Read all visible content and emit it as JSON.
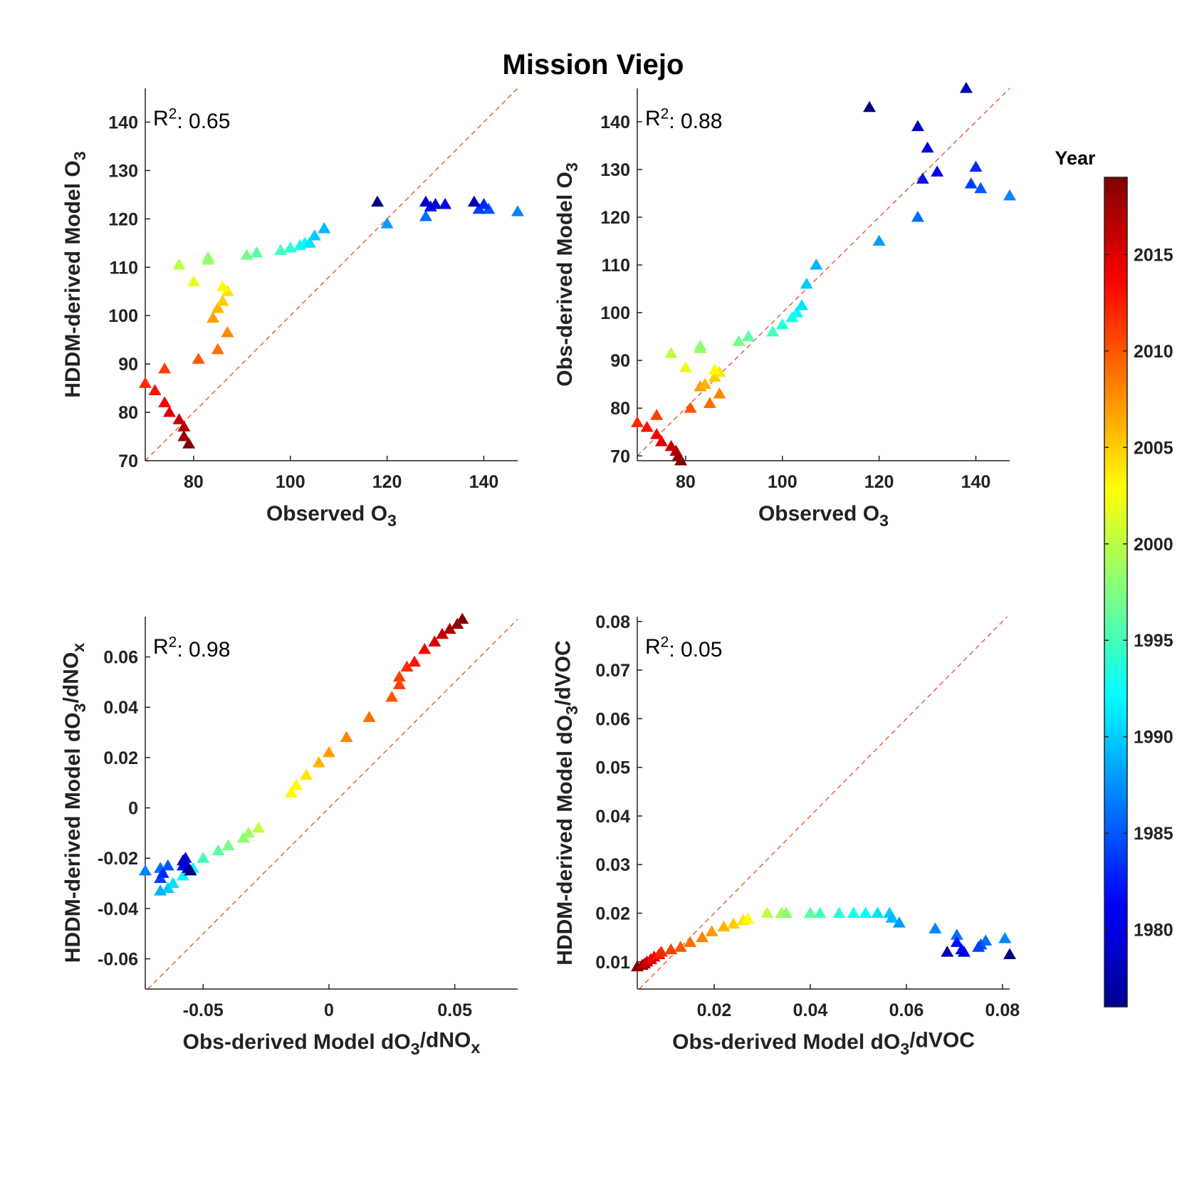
{
  "figure": {
    "title": "Mission Viejo",
    "colorbar": {
      "title": "Year",
      "range": [
        1976,
        2019
      ],
      "ticks": [
        1980,
        1985,
        1990,
        1995,
        2000,
        2005,
        2010,
        2015
      ],
      "colormap": "jet"
    }
  },
  "chart_data": [
    {
      "type": "scatter",
      "marker": "triangle",
      "xlabel": "Observed O3",
      "ylabel": "HDDM-derived Model O3",
      "annotation": "R2: 0.65",
      "xlim": [
        70,
        147
      ],
      "ylim": [
        70,
        147
      ],
      "xticks": [
        80,
        100,
        120,
        140
      ],
      "yticks": [
        70,
        80,
        90,
        100,
        110,
        120,
        130,
        140
      ],
      "identity_line": true,
      "points": [
        {
          "x": 79,
          "y": 73.5,
          "year": 2019
        },
        {
          "x": 78,
          "y": 75,
          "year": 2018
        },
        {
          "x": 78,
          "y": 77,
          "year": 2017
        },
        {
          "x": 77,
          "y": 78.5,
          "year": 2016
        },
        {
          "x": 75,
          "y": 80,
          "year": 2015
        },
        {
          "x": 74,
          "y": 82,
          "year": 2014
        },
        {
          "x": 72,
          "y": 84.5,
          "year": 2013
        },
        {
          "x": 70,
          "y": 86,
          "year": 2012
        },
        {
          "x": 74,
          "y": 89,
          "year": 2011
        },
        {
          "x": 81,
          "y": 91,
          "year": 2010
        },
        {
          "x": 85,
          "y": 93,
          "year": 2009
        },
        {
          "x": 87,
          "y": 96.5,
          "year": 2008
        },
        {
          "x": 84,
          "y": 99.5,
          "year": 2007
        },
        {
          "x": 85,
          "y": 101.5,
          "year": 2006
        },
        {
          "x": 86,
          "y": 103,
          "year": 2005
        },
        {
          "x": 87,
          "y": 105,
          "year": 2004
        },
        {
          "x": 86,
          "y": 106,
          "year": 2003
        },
        {
          "x": 80,
          "y": 107,
          "year": 2002
        },
        {
          "x": 77,
          "y": 110.5,
          "year": 2000
        },
        {
          "x": 83,
          "y": 111.5,
          "year": 1999
        },
        {
          "x": 83,
          "y": 112,
          "year": 1998
        },
        {
          "x": 91,
          "y": 112.5,
          "year": 1997
        },
        {
          "x": 93,
          "y": 113,
          "year": 1996
        },
        {
          "x": 98,
          "y": 113.5,
          "year": 1995
        },
        {
          "x": 100,
          "y": 114,
          "year": 1994
        },
        {
          "x": 102,
          "y": 114.5,
          "year": 1993
        },
        {
          "x": 103,
          "y": 115,
          "year": 1992
        },
        {
          "x": 104,
          "y": 115,
          "year": 1991
        },
        {
          "x": 105,
          "y": 116.5,
          "year": 1990
        },
        {
          "x": 107,
          "y": 118,
          "year": 1989
        },
        {
          "x": 120,
          "y": 119,
          "year": 1988
        },
        {
          "x": 147,
          "y": 121.5,
          "year": 1987
        },
        {
          "x": 128,
          "y": 120.5,
          "year": 1986
        },
        {
          "x": 141,
          "y": 122,
          "year": 1985
        },
        {
          "x": 139,
          "y": 122,
          "year": 1984
        },
        {
          "x": 140,
          "y": 123,
          "year": 1983
        },
        {
          "x": 129,
          "y": 122.5,
          "year": 1982
        },
        {
          "x": 132,
          "y": 123,
          "year": 1981
        },
        {
          "x": 130,
          "y": 123,
          "year": 1980
        },
        {
          "x": 128,
          "y": 123.5,
          "year": 1979
        },
        {
          "x": 138,
          "y": 123.5,
          "year": 1978
        },
        {
          "x": 118,
          "y": 123.5,
          "year": 1976
        }
      ]
    },
    {
      "type": "scatter",
      "marker": "triangle",
      "xlabel": "Observed O3",
      "ylabel": "Obs-derived Model O3",
      "annotation": "R2: 0.88",
      "xlim": [
        70,
        147
      ],
      "ylim": [
        69,
        147
      ],
      "xticks": [
        80,
        100,
        120,
        140
      ],
      "yticks": [
        70,
        80,
        90,
        100,
        110,
        120,
        130,
        140
      ],
      "identity_line": true,
      "points": [
        {
          "x": 79,
          "y": 69,
          "year": 2019
        },
        {
          "x": 78.5,
          "y": 70,
          "year": 2018
        },
        {
          "x": 78,
          "y": 71,
          "year": 2017
        },
        {
          "x": 77,
          "y": 72,
          "year": 2016
        },
        {
          "x": 75,
          "y": 73,
          "year": 2015
        },
        {
          "x": 74,
          "y": 74.5,
          "year": 2014
        },
        {
          "x": 72,
          "y": 76,
          "year": 2013
        },
        {
          "x": 70,
          "y": 77,
          "year": 2012
        },
        {
          "x": 74,
          "y": 78.5,
          "year": 2011
        },
        {
          "x": 81,
          "y": 80,
          "year": 2010
        },
        {
          "x": 85,
          "y": 81,
          "year": 2009
        },
        {
          "x": 87,
          "y": 83,
          "year": 2008
        },
        {
          "x": 83,
          "y": 84.5,
          "year": 2007
        },
        {
          "x": 84,
          "y": 85,
          "year": 2006
        },
        {
          "x": 86,
          "y": 86.5,
          "year": 2005
        },
        {
          "x": 87,
          "y": 87.5,
          "year": 2004
        },
        {
          "x": 86,
          "y": 88,
          "year": 2003
        },
        {
          "x": 80,
          "y": 88.5,
          "year": 2002
        },
        {
          "x": 77,
          "y": 91.5,
          "year": 2000
        },
        {
          "x": 83,
          "y": 92.5,
          "year": 1999
        },
        {
          "x": 83,
          "y": 93,
          "year": 1998
        },
        {
          "x": 91,
          "y": 94,
          "year": 1997
        },
        {
          "x": 93,
          "y": 95,
          "year": 1996
        },
        {
          "x": 98,
          "y": 96,
          "year": 1995
        },
        {
          "x": 100,
          "y": 97.5,
          "year": 1994
        },
        {
          "x": 102,
          "y": 99,
          "year": 1993
        },
        {
          "x": 103,
          "y": 100,
          "year": 1992
        },
        {
          "x": 104,
          "y": 101.5,
          "year": 1991
        },
        {
          "x": 105,
          "y": 106,
          "year": 1990
        },
        {
          "x": 107,
          "y": 110,
          "year": 1989
        },
        {
          "x": 120,
          "y": 115,
          "year": 1988
        },
        {
          "x": 147,
          "y": 124.5,
          "year": 1987
        },
        {
          "x": 128,
          "y": 120,
          "year": 1986
        },
        {
          "x": 141,
          "y": 126,
          "year": 1985
        },
        {
          "x": 139,
          "y": 127,
          "year": 1984
        },
        {
          "x": 140,
          "y": 130.5,
          "year": 1983
        },
        {
          "x": 129,
          "y": 128,
          "year": 1982
        },
        {
          "x": 132,
          "y": 129.5,
          "year": 1981
        },
        {
          "x": 130,
          "y": 134.5,
          "year": 1980
        },
        {
          "x": 128,
          "y": 139,
          "year": 1979
        },
        {
          "x": 138,
          "y": 147,
          "year": 1978
        },
        {
          "x": 118,
          "y": 143,
          "year": 1976
        }
      ]
    },
    {
      "type": "scatter",
      "marker": "triangle",
      "xlabel": "Obs-derived Model dO3/dNOx",
      "ylabel": "HDDM-derived Model dO3/dNOx",
      "annotation": "R2: 0.98",
      "xlim": [
        -0.073,
        0.075
      ],
      "ylim": [
        -0.072,
        0.076
      ],
      "xticks": [
        -0.05,
        0,
        0.05
      ],
      "xticklabels": [
        "-0.05",
        "0",
        "0.05"
      ],
      "yticks": [
        -0.06,
        -0.04,
        -0.02,
        0,
        0.02,
        0.04,
        0.06
      ],
      "yticklabels": [
        "-0.06",
        "-0.04",
        "-0.02",
        "0",
        "0.02",
        "0.04",
        "0.06"
      ],
      "identity_line": true,
      "points": [
        {
          "x": 0.053,
          "y": 0.075,
          "year": 2019
        },
        {
          "x": 0.051,
          "y": 0.073,
          "year": 2018
        },
        {
          "x": 0.048,
          "y": 0.071,
          "year": 2017
        },
        {
          "x": 0.045,
          "y": 0.069,
          "year": 2016
        },
        {
          "x": 0.042,
          "y": 0.066,
          "year": 2015
        },
        {
          "x": 0.038,
          "y": 0.063,
          "year": 2014
        },
        {
          "x": 0.034,
          "y": 0.058,
          "year": 2013
        },
        {
          "x": 0.031,
          "y": 0.056,
          "year": 2012
        },
        {
          "x": 0.028,
          "y": 0.052,
          "year": 2011
        },
        {
          "x": 0.028,
          "y": 0.049,
          "year": 2011
        },
        {
          "x": 0.025,
          "y": 0.044,
          "year": 2010
        },
        {
          "x": 0.016,
          "y": 0.036,
          "year": 2009
        },
        {
          "x": 0.007,
          "y": 0.028,
          "year": 2008
        },
        {
          "x": 0.0,
          "y": 0.022,
          "year": 2007
        },
        {
          "x": -0.004,
          "y": 0.018,
          "year": 2006
        },
        {
          "x": -0.009,
          "y": 0.013,
          "year": 2004
        },
        {
          "x": -0.013,
          "y": 0.009,
          "year": 2003
        },
        {
          "x": -0.015,
          "y": 0.006,
          "year": 2003
        },
        {
          "x": -0.028,
          "y": -0.008,
          "year": 2000
        },
        {
          "x": -0.032,
          "y": -0.01,
          "year": 1999
        },
        {
          "x": -0.034,
          "y": -0.012,
          "year": 1998
        },
        {
          "x": -0.04,
          "y": -0.015,
          "year": 1997
        },
        {
          "x": -0.044,
          "y": -0.017,
          "year": 1996
        },
        {
          "x": -0.05,
          "y": -0.02,
          "year": 1995
        },
        {
          "x": -0.054,
          "y": -0.024,
          "year": 1993
        },
        {
          "x": -0.058,
          "y": -0.027,
          "year": 1992
        },
        {
          "x": -0.062,
          "y": -0.03,
          "year": 1991
        },
        {
          "x": -0.064,
          "y": -0.032,
          "year": 1990
        },
        {
          "x": -0.067,
          "y": -0.033,
          "year": 1989
        },
        {
          "x": -0.073,
          "y": -0.025,
          "year": 1987
        },
        {
          "x": -0.067,
          "y": -0.024,
          "year": 1986
        },
        {
          "x": -0.064,
          "y": -0.023,
          "year": 1985
        },
        {
          "x": -0.067,
          "y": -0.028,
          "year": 1984
        },
        {
          "x": -0.066,
          "y": -0.026,
          "year": 1983
        },
        {
          "x": -0.058,
          "y": -0.023,
          "year": 1982
        },
        {
          "x": -0.057,
          "y": -0.022,
          "year": 1981
        },
        {
          "x": -0.057,
          "y": -0.02,
          "year": 1980
        },
        {
          "x": -0.058,
          "y": -0.021,
          "year": 1979
        },
        {
          "x": -0.056,
          "y": -0.024,
          "year": 1978
        },
        {
          "x": -0.055,
          "y": -0.025,
          "year": 1976
        }
      ]
    },
    {
      "type": "scatter",
      "marker": "triangle",
      "xlabel": "Obs-derived Model dO3/dVOC",
      "ylabel": "HDDM-derived Model dO3/dVOC",
      "annotation": "R2: 0.05",
      "xlim": [
        0.004,
        0.0815
      ],
      "ylim": [
        0.0044,
        0.081
      ],
      "xticks": [
        0.02,
        0.04,
        0.06,
        0.08
      ],
      "xticklabels": [
        "0.02",
        "0.04",
        "0.06",
        "0.08"
      ],
      "yticks": [
        0.01,
        0.02,
        0.03,
        0.04,
        0.05,
        0.06,
        0.07,
        0.08
      ],
      "yticklabels": [
        "0.01",
        "0.02",
        "0.03",
        "0.04",
        "0.05",
        "0.06",
        "0.07",
        "0.08"
      ],
      "identity_line": true,
      "points": [
        {
          "x": 0.004,
          "y": 0.009,
          "year": 2019
        },
        {
          "x": 0.005,
          "y": 0.0093,
          "year": 2018
        },
        {
          "x": 0.0055,
          "y": 0.0096,
          "year": 2017
        },
        {
          "x": 0.006,
          "y": 0.01,
          "year": 2016
        },
        {
          "x": 0.0068,
          "y": 0.0105,
          "year": 2015
        },
        {
          "x": 0.0075,
          "y": 0.011,
          "year": 2014
        },
        {
          "x": 0.0085,
          "y": 0.0115,
          "year": 2013
        },
        {
          "x": 0.009,
          "y": 0.012,
          "year": 2012
        },
        {
          "x": 0.011,
          "y": 0.0125,
          "year": 2011
        },
        {
          "x": 0.013,
          "y": 0.013,
          "year": 2010
        },
        {
          "x": 0.015,
          "y": 0.014,
          "year": 2009
        },
        {
          "x": 0.0175,
          "y": 0.015,
          "year": 2008
        },
        {
          "x": 0.0195,
          "y": 0.0162,
          "year": 2007
        },
        {
          "x": 0.022,
          "y": 0.0172,
          "year": 2006
        },
        {
          "x": 0.024,
          "y": 0.0178,
          "year": 2005
        },
        {
          "x": 0.026,
          "y": 0.0185,
          "year": 2004
        },
        {
          "x": 0.027,
          "y": 0.0188,
          "year": 2003
        },
        {
          "x": 0.031,
          "y": 0.02,
          "year": 2000
        },
        {
          "x": 0.034,
          "y": 0.02,
          "year": 1999
        },
        {
          "x": 0.035,
          "y": 0.02,
          "year": 1998
        },
        {
          "x": 0.04,
          "y": 0.02,
          "year": 1996
        },
        {
          "x": 0.042,
          "y": 0.02,
          "year": 1995
        },
        {
          "x": 0.046,
          "y": 0.02,
          "year": 1994
        },
        {
          "x": 0.049,
          "y": 0.02,
          "year": 1993
        },
        {
          "x": 0.0515,
          "y": 0.02,
          "year": 1992
        },
        {
          "x": 0.054,
          "y": 0.02,
          "year": 1991
        },
        {
          "x": 0.0565,
          "y": 0.02,
          "year": 1990
        },
        {
          "x": 0.057,
          "y": 0.019,
          "year": 1989
        },
        {
          "x": 0.0585,
          "y": 0.018,
          "year": 1988
        },
        {
          "x": 0.066,
          "y": 0.0168,
          "year": 1987
        },
        {
          "x": 0.0705,
          "y": 0.0155,
          "year": 1986
        },
        {
          "x": 0.0805,
          "y": 0.0148,
          "year": 1987
        },
        {
          "x": 0.0765,
          "y": 0.0143,
          "year": 1986
        },
        {
          "x": 0.0755,
          "y": 0.0135,
          "year": 1985
        },
        {
          "x": 0.075,
          "y": 0.013,
          "year": 1984
        },
        {
          "x": 0.0705,
          "y": 0.014,
          "year": 1982
        },
        {
          "x": 0.0715,
          "y": 0.0125,
          "year": 1981
        },
        {
          "x": 0.072,
          "y": 0.012,
          "year": 1980
        },
        {
          "x": 0.0685,
          "y": 0.012,
          "year": 1978
        },
        {
          "x": 0.0815,
          "y": 0.0115,
          "year": 1976
        }
      ]
    }
  ]
}
